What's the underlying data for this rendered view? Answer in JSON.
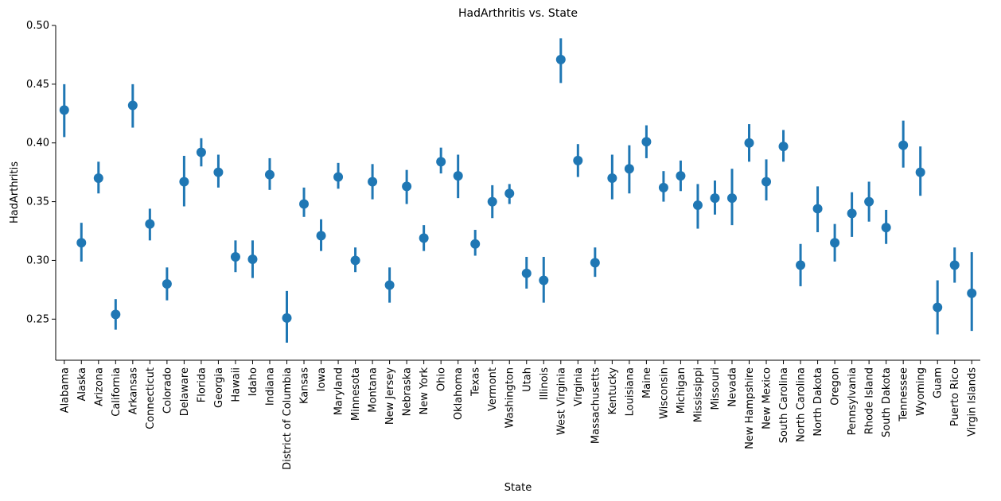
{
  "chart_data": {
    "type": "scatter",
    "subtype": "point-plot-with-error-bars",
    "title": "HadArthritis vs. State",
    "xlabel": "State",
    "ylabel": "HadArthritis",
    "ylim": [
      0.215,
      0.5
    ],
    "yticks": [
      0.25,
      0.3,
      0.35,
      0.4,
      0.45,
      0.5
    ],
    "ytick_labels": [
      "0.25",
      "0.30",
      "0.35",
      "0.40",
      "0.45",
      "0.50"
    ],
    "grid": false,
    "legend": "none",
    "color": "#1f77b4",
    "categories": [
      "Alabama",
      "Alaska",
      "Arizona",
      "California",
      "Arkansas",
      "Connecticut",
      "Colorado",
      "Delaware",
      "Florida",
      "Georgia",
      "Hawaii",
      "Idaho",
      "Indiana",
      "District of Columbia",
      "Kansas",
      "Iowa",
      "Maryland",
      "Minnesota",
      "Montana",
      "New Jersey",
      "Nebraska",
      "New York",
      "Ohio",
      "Oklahoma",
      "Texas",
      "Vermont",
      "Washington",
      "Utah",
      "Illinois",
      "West Virginia",
      "Virginia",
      "Massachusetts",
      "Kentucky",
      "Louisiana",
      "Maine",
      "Wisconsin",
      "Michigan",
      "Mississippi",
      "Missouri",
      "Nevada",
      "New Hampshire",
      "New Mexico",
      "South Carolina",
      "North Carolina",
      "North Dakota",
      "Oregon",
      "Pennsylvania",
      "Rhode Island",
      "South Dakota",
      "Tennessee",
      "Wyoming",
      "Guam",
      "Puerto Rico",
      "Virgin Islands"
    ],
    "values": [
      0.428,
      0.315,
      0.37,
      0.254,
      0.432,
      0.331,
      0.28,
      0.367,
      0.392,
      0.375,
      0.303,
      0.301,
      0.373,
      0.251,
      0.348,
      0.321,
      0.371,
      0.3,
      0.367,
      0.279,
      0.363,
      0.319,
      0.384,
      0.372,
      0.314,
      0.35,
      0.357,
      0.289,
      0.283,
      0.471,
      0.385,
      0.298,
      0.37,
      0.378,
      0.401,
      0.362,
      0.372,
      0.347,
      0.353,
      0.353,
      0.4,
      0.367,
      0.397,
      0.296,
      0.344,
      0.315,
      0.34,
      0.35,
      0.328,
      0.398,
      0.375,
      0.26,
      0.296,
      0.272
    ],
    "ci_lower": [
      0.405,
      0.299,
      0.357,
      0.241,
      0.413,
      0.317,
      0.266,
      0.346,
      0.38,
      0.362,
      0.29,
      0.285,
      0.36,
      0.23,
      0.337,
      0.308,
      0.361,
      0.29,
      0.352,
      0.264,
      0.348,
      0.308,
      0.374,
      0.353,
      0.304,
      0.336,
      0.348,
      0.276,
      0.264,
      0.451,
      0.371,
      0.286,
      0.352,
      0.357,
      0.387,
      0.35,
      0.359,
      0.327,
      0.339,
      0.33,
      0.384,
      0.351,
      0.384,
      0.278,
      0.324,
      0.299,
      0.32,
      0.333,
      0.314,
      0.379,
      0.355,
      0.237,
      0.281,
      0.24
    ],
    "ci_upper": [
      0.45,
      0.332,
      0.384,
      0.267,
      0.45,
      0.344,
      0.294,
      0.389,
      0.404,
      0.39,
      0.317,
      0.317,
      0.387,
      0.274,
      0.362,
      0.335,
      0.383,
      0.311,
      0.382,
      0.294,
      0.377,
      0.33,
      0.396,
      0.39,
      0.326,
      0.364,
      0.365,
      0.303,
      0.303,
      0.489,
      0.399,
      0.311,
      0.39,
      0.398,
      0.415,
      0.376,
      0.385,
      0.365,
      0.368,
      0.378,
      0.416,
      0.386,
      0.411,
      0.314,
      0.363,
      0.331,
      0.358,
      0.367,
      0.343,
      0.419,
      0.397,
      0.283,
      0.311,
      0.307
    ]
  }
}
